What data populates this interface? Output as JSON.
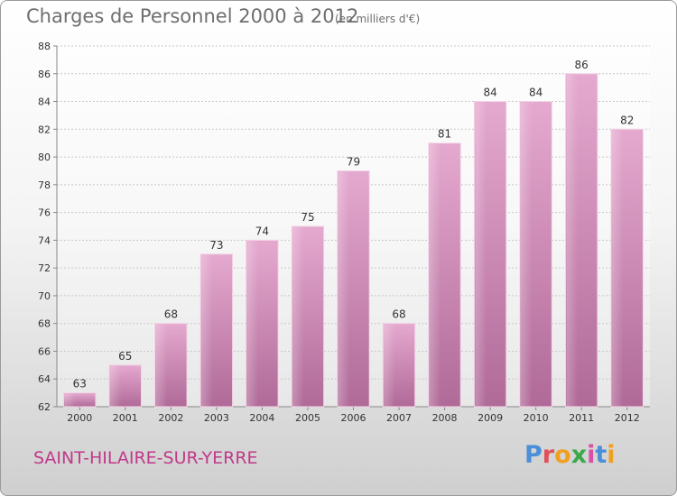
{
  "header": {
    "title": "Charges de Personnel 2000 à 2012",
    "subtitle": "(en milliers d'€)"
  },
  "footer": {
    "commune": "SAINT-HILAIRE-SUR-YERRE",
    "logo_letters": [
      "P",
      "r",
      "o",
      "x",
      "i",
      "t",
      "i"
    ]
  },
  "chart_data": {
    "type": "bar",
    "title": "Charges de Personnel 2000 à 2012",
    "subtitle": "(en milliers d'€)",
    "xlabel": "",
    "ylabel": "",
    "categories": [
      "2000",
      "2001",
      "2002",
      "2003",
      "2004",
      "2005",
      "2006",
      "2007",
      "2008",
      "2009",
      "2010",
      "2011",
      "2012"
    ],
    "values": [
      63,
      65,
      68,
      73,
      74,
      75,
      79,
      68,
      81,
      84,
      84,
      86,
      82
    ],
    "ylim": [
      62,
      88
    ],
    "yticks": [
      62,
      64,
      66,
      68,
      70,
      72,
      74,
      76,
      78,
      80,
      82,
      84,
      86,
      88
    ],
    "grid": true,
    "bar_color": "#d27fb2"
  }
}
